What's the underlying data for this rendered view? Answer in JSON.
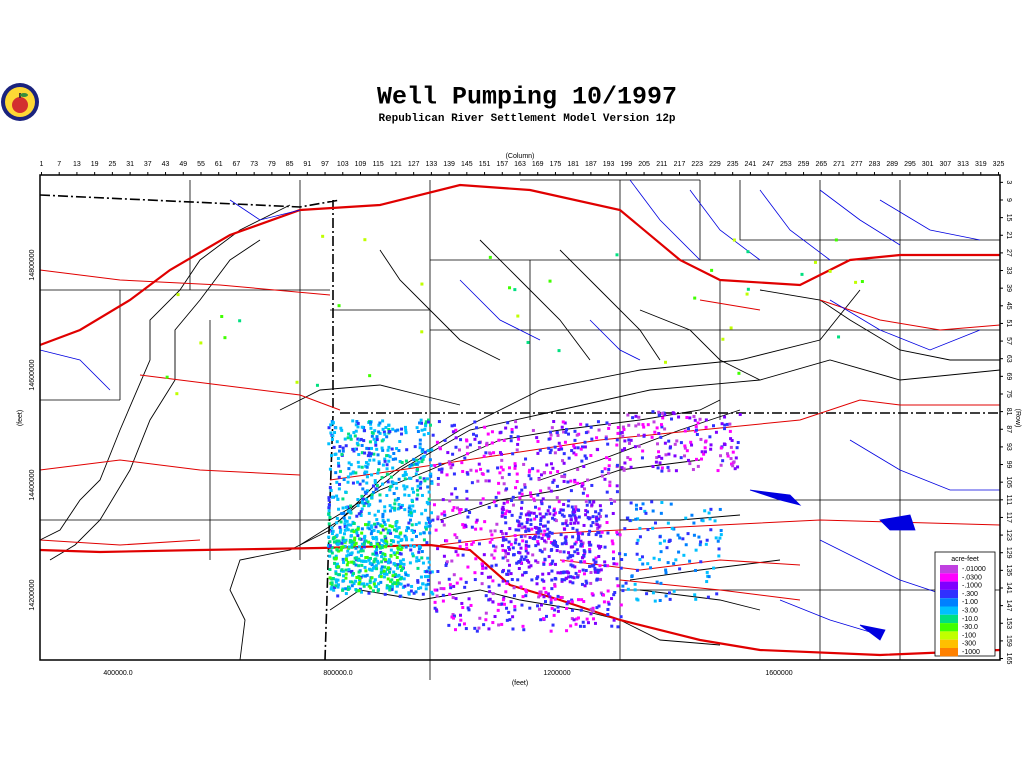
{
  "header": {
    "title": "Well Pumping 10/1997",
    "subtitle": "Republican River Settlement Model Version 12p"
  },
  "axes": {
    "top_title": "(Column)",
    "bottom_title": "(feet)",
    "left_title": "(feet)",
    "right_title": "(Row)",
    "columns": [
      1,
      7,
      13,
      19,
      25,
      31,
      37,
      43,
      49,
      55,
      61,
      67,
      73,
      79,
      85,
      91,
      97,
      103,
      109,
      115,
      121,
      127,
      133,
      139,
      145,
      151,
      157,
      163,
      169,
      175,
      181,
      187,
      193,
      199,
      205,
      211,
      217,
      223,
      229,
      235,
      241,
      247,
      253,
      259,
      265,
      271,
      277,
      283,
      289,
      295,
      301,
      307,
      313,
      319,
      325
    ],
    "rows": [
      3,
      9,
      15,
      21,
      27,
      33,
      39,
      45,
      51,
      57,
      63,
      69,
      75,
      81,
      87,
      93,
      99,
      105,
      111,
      117,
      123,
      129,
      135,
      141,
      147,
      153,
      159,
      165
    ],
    "x_labels": [
      "400000.0",
      "800000.0",
      "1200000",
      "1600000"
    ],
    "y_labels": [
      "14800000",
      "14600000",
      "14400000",
      "14200000"
    ]
  },
  "legend": {
    "title": "acre-feet",
    "entries": [
      {
        "label": "-.01000",
        "color": "#c040e0"
      },
      {
        "label": "-.0300",
        "color": "#ff00ff"
      },
      {
        "label": "-.1000",
        "color": "#8000ff"
      },
      {
        "label": "-.300",
        "color": "#3030ff"
      },
      {
        "label": "-1.00",
        "color": "#0080ff"
      },
      {
        "label": "-3.00",
        "color": "#00c0ff"
      },
      {
        "label": "-10.0",
        "color": "#00e080"
      },
      {
        "label": "-30.0",
        "color": "#40ff00"
      },
      {
        "label": "-100",
        "color": "#c0ff00"
      },
      {
        "label": "-300",
        "color": "#ffc000"
      },
      {
        "label": "-1000",
        "color": "#ff8000"
      }
    ]
  }
}
